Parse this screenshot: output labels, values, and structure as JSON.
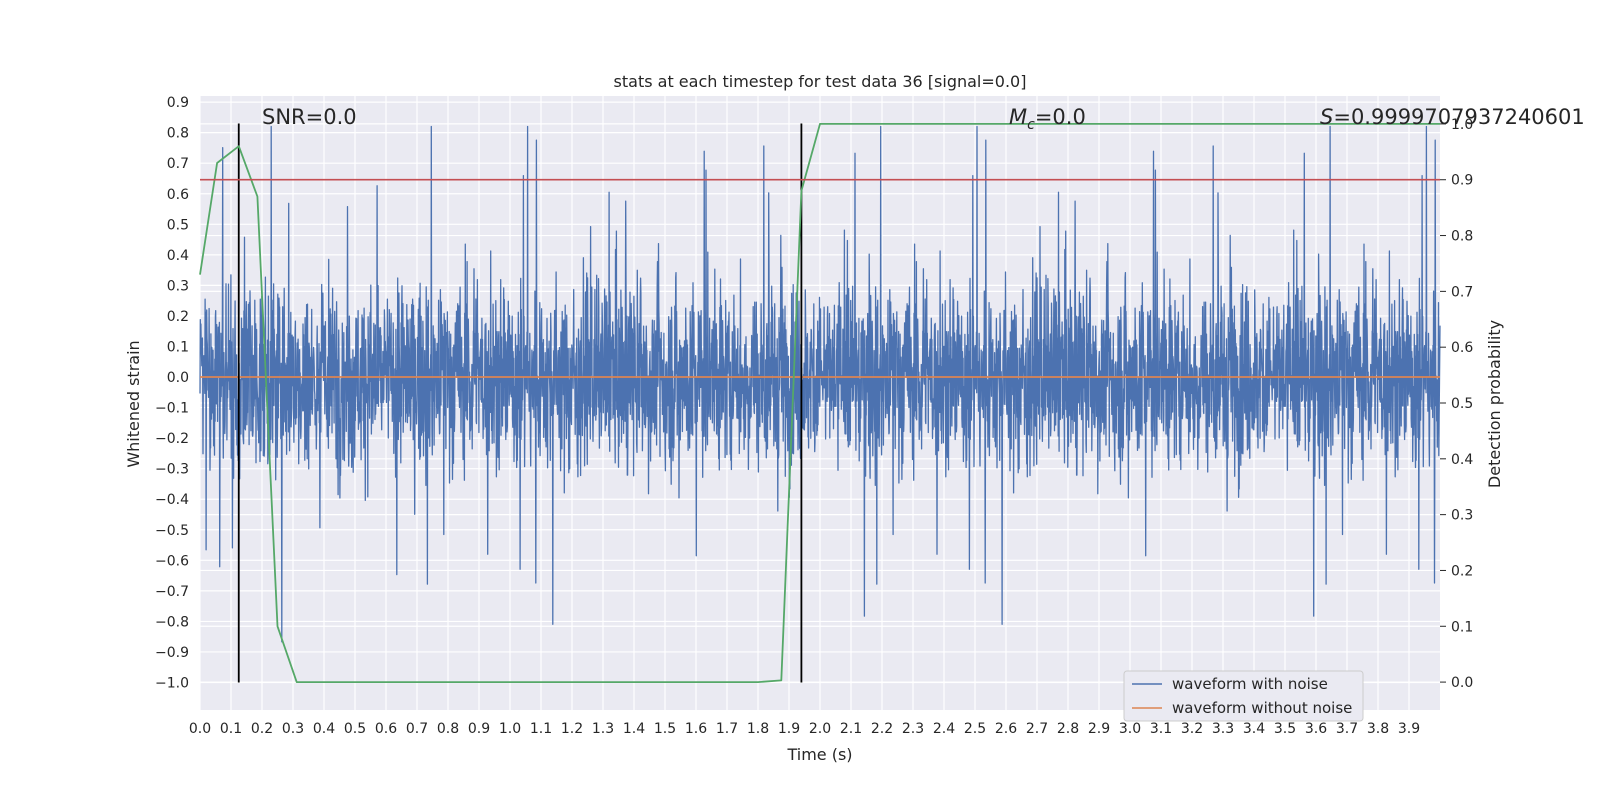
{
  "chart_data": {
    "type": "line",
    "title": "stats at each timestep for test data 36 [signal=0.0]",
    "xlabel": "Time (s)",
    "ylabel": "Whitened strain",
    "y2label": "Detection probability",
    "xlim": [
      0.0,
      4.0
    ],
    "ylim": [
      -1.09,
      0.92
    ],
    "y2lim": [
      -0.05,
      1.05
    ],
    "x_ticks": [
      0.0,
      0.1,
      0.2,
      0.3,
      0.4,
      0.5,
      0.6,
      0.7,
      0.8,
      0.9,
      1.0,
      1.1,
      1.2,
      1.3,
      1.4,
      1.5,
      1.6,
      1.7,
      1.8,
      1.9,
      2.0,
      2.1,
      2.2,
      2.3,
      2.4,
      2.5,
      2.6,
      2.7,
      2.8,
      2.9,
      3.0,
      3.1,
      3.2,
      3.3,
      3.4,
      3.5,
      3.6,
      3.7,
      3.8,
      3.9
    ],
    "x_tick_labels": [
      "0.0",
      "0.1",
      "0.2",
      "0.3",
      "0.4",
      "0.5",
      "0.6",
      "0.7",
      "0.8",
      "0.9",
      "1.0",
      "1.1",
      "1.2",
      "1.3",
      "1.4",
      "1.5",
      "1.6",
      "1.7",
      "1.8",
      "1.9",
      "2.0",
      "2.1",
      "2.2",
      "2.3",
      "2.4",
      "2.5",
      "2.6",
      "2.7",
      "2.8",
      "2.9",
      "3.0",
      "3.1",
      "3.2",
      "3.3",
      "3.4",
      "3.5",
      "3.6",
      "3.7",
      "3.8",
      "3.9"
    ],
    "y_ticks": [
      0.9,
      0.8,
      0.7,
      0.6,
      0.5,
      0.4,
      0.3,
      0.2,
      0.1,
      0.0,
      -0.1,
      -0.2,
      -0.3,
      -0.4,
      -0.5,
      -0.6,
      -0.7,
      -0.8,
      -0.9,
      -1.0
    ],
    "y_tick_labels": [
      "0.9",
      "0.8",
      "0.7",
      "0.6",
      "0.5",
      "0.4",
      "0.3",
      "0.2",
      "0.1",
      "0.0",
      "−0.1",
      "−0.2",
      "−0.3",
      "−0.4",
      "−0.5",
      "−0.6",
      "−0.7",
      "−0.8",
      "−0.9",
      "−1.0"
    ],
    "y2_ticks": [
      0.0,
      0.1,
      0.2,
      0.3,
      0.4,
      0.5,
      0.6,
      0.7,
      0.8,
      0.9,
      1.0
    ],
    "y2_tick_labels": [
      "0.0",
      "0.1",
      "0.2",
      "0.3",
      "0.4",
      "0.5",
      "0.6",
      "0.7",
      "0.8",
      "0.9",
      "1.0"
    ],
    "series": [
      {
        "name": "waveform with noise",
        "color": "#4c72b0",
        "description": "dense noise between about -0.9 and 0.8"
      },
      {
        "name": "waveform without noise",
        "color": "#dd8452",
        "x": [
          0.0,
          4.0
        ],
        "y": [
          0.0,
          0.0
        ]
      }
    ],
    "probability_series": {
      "name": "detection probability",
      "color": "#55a868",
      "x": [
        0.0,
        0.055,
        0.125,
        0.185,
        0.25,
        0.312,
        0.6,
        1.8,
        1.875,
        1.94,
        2.0,
        4.0
      ],
      "y": [
        0.73,
        0.93,
        0.96,
        0.87,
        0.1,
        0.0,
        0.0,
        0.0,
        0.003,
        0.88,
        1.0,
        1.0
      ]
    },
    "threshold": {
      "value": 0.9,
      "axis": "y2",
      "color": "#c44e52"
    },
    "vlines": [
      {
        "x": 0.125,
        "y_range": [
          -1.0,
          0.83
        ],
        "color": "#000000"
      },
      {
        "x": 1.94,
        "y_range": [
          -1.0,
          0.83
        ],
        "color": "#000000"
      }
    ],
    "annotations": {
      "snr": "SNR=0.0",
      "mc_symbol": "M",
      "mc_sub": "c",
      "mc_value": "=0.0",
      "s_symbol": "S",
      "s_value": "=0.9999707937240601"
    },
    "legend": {
      "position": "bottom-right",
      "entries": [
        {
          "label": "waveform with noise",
          "color": "#4c72b0"
        },
        {
          "label": "waveform without noise",
          "color": "#dd8452"
        }
      ]
    },
    "grid": true
  }
}
